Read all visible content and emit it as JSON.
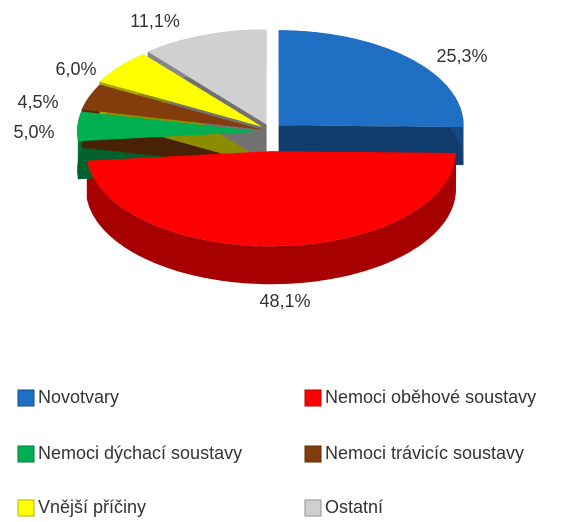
{
  "chart_data": {
    "type": "pie",
    "categories": [
      "Novotvary",
      "Nemoci oběhové soustavy",
      "Nemoci dýchací soustavy",
      "Nemoci trávicíc soustavy",
      "Vnější příčiny",
      "Ostatní"
    ],
    "values": [
      25.3,
      48.1,
      5.0,
      4.5,
      6.0,
      11.1
    ],
    "value_labels": [
      "25,3%",
      "48,1%",
      "5,0%",
      "4,5%",
      "6,0%",
      "11,1%"
    ],
    "colors": [
      "#1f6fc5",
      "#ff0000",
      "#00b050",
      "#843c0c",
      "#ffff00",
      "#d0d0d0"
    ]
  }
}
